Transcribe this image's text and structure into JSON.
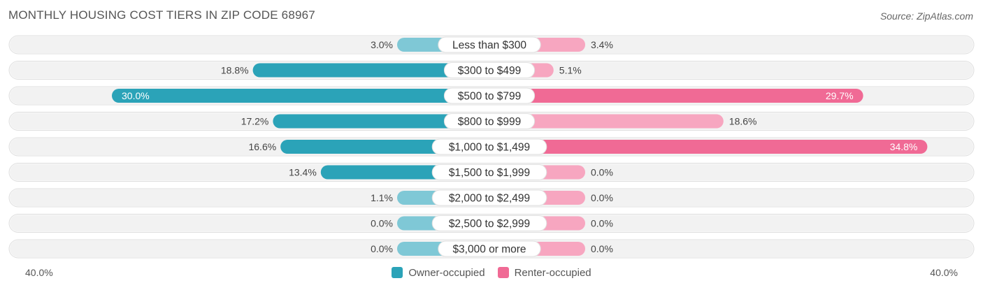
{
  "header": {
    "title": "MONTHLY HOUSING COST TIERS IN ZIP CODE 68967",
    "source": "Source: ZipAtlas.com"
  },
  "axis": {
    "left_label": "40.0%",
    "right_label": "40.0%"
  },
  "legend": {
    "owner_label": "Owner-occupied",
    "renter_label": "Renter-occupied"
  },
  "colors": {
    "owner": "#7fc8d6",
    "owner_strong": "#2ba3b8",
    "renter": "#f7a6c0",
    "renter_strong": "#f06a95",
    "track": "#f2f2f2"
  },
  "chart_data": {
    "type": "bar",
    "orientation": "horizontal-diverging",
    "title": "MONTHLY HOUSING COST TIERS IN ZIP CODE 68967",
    "xlim": [
      -40,
      40
    ],
    "categories": [
      "Less than $300",
      "$300 to $499",
      "$500 to $799",
      "$800 to $999",
      "$1,000 to $1,499",
      "$1,500 to $1,999",
      "$2,000 to $2,499",
      "$2,500 to $2,999",
      "$3,000 or more"
    ],
    "series": [
      {
        "name": "Owner-occupied",
        "values": [
          3.0,
          18.8,
          30.0,
          17.2,
          16.6,
          13.4,
          1.1,
          0.0,
          0.0
        ],
        "labels": [
          "3.0%",
          "18.8%",
          "30.0%",
          "17.2%",
          "16.6%",
          "13.4%",
          "1.1%",
          "0.0%",
          "0.0%"
        ]
      },
      {
        "name": "Renter-occupied",
        "values": [
          3.4,
          5.1,
          29.7,
          18.6,
          34.8,
          0.0,
          0.0,
          0.0,
          0.0
        ],
        "labels": [
          "3.4%",
          "5.1%",
          "29.7%",
          "18.6%",
          "34.8%",
          "0.0%",
          "0.0%",
          "0.0%",
          "0.0%"
        ]
      }
    ],
    "legend_position": "bottom-center"
  }
}
